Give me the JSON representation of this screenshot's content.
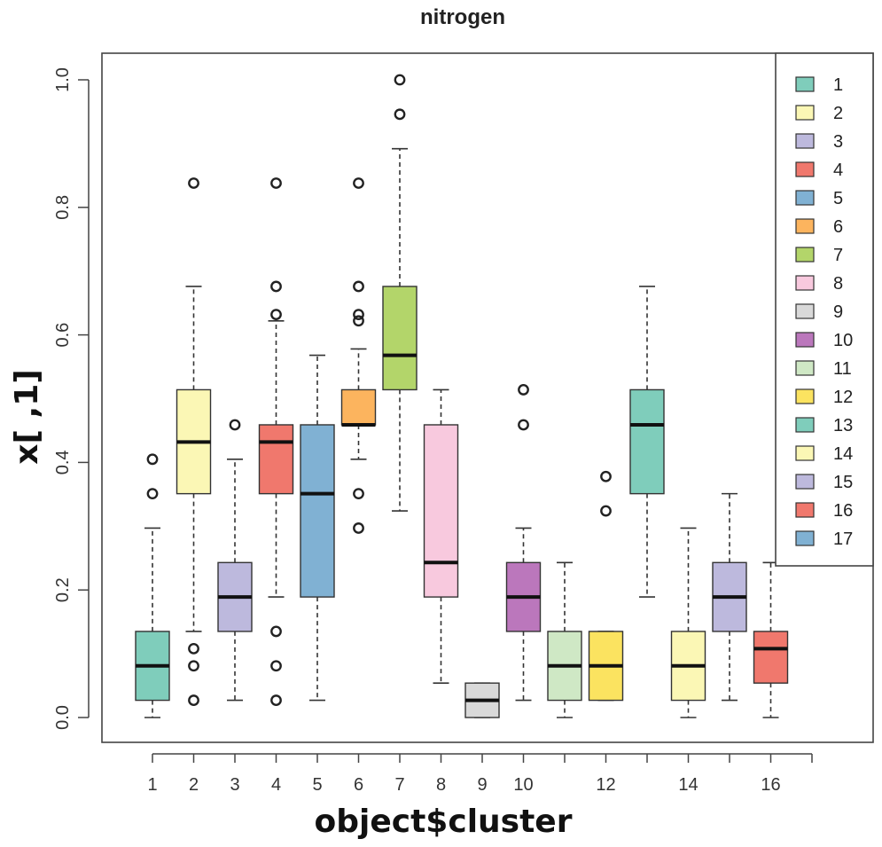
{
  "chart_data": {
    "type": "boxplot",
    "title": "nitrogen",
    "xlabel": "object$cluster",
    "ylabel": "x[ ,1]",
    "ylim": [
      0,
      1
    ],
    "y_ticks": [
      "0.0",
      "0.2",
      "0.4",
      "0.6",
      "0.8",
      "1.0"
    ],
    "categories": [
      "1",
      "2",
      "3",
      "4",
      "5",
      "6",
      "7",
      "8",
      "9",
      "10",
      "11",
      "12",
      "13",
      "14",
      "15",
      "16",
      "17"
    ],
    "x_tick_labels": [
      "1",
      "2",
      "3",
      "4",
      "5",
      "6",
      "7",
      "8",
      "9",
      "10",
      "",
      "12",
      "",
      "14",
      "",
      "16",
      ""
    ],
    "colors": [
      "#7fcdbb",
      "#fbf7b5",
      "#bdb9dd",
      "#f0786d",
      "#80b1d3",
      "#fcb45e",
      "#b3d56a",
      "#f8c9de",
      "#d9d9d9",
      "#bb77bc",
      "#cfe8c5",
      "#fbe360",
      "#7fcdbb",
      "#fbf7b5",
      "#bdb9dd",
      "#f0786d",
      "#80b1d3"
    ],
    "boxes": [
      {
        "cluster": "1",
        "low": 0.0,
        "q1": 0.027,
        "median": 0.081,
        "q3": 0.135,
        "high": 0.297,
        "outliers": [
          0.351,
          0.405
        ]
      },
      {
        "cluster": "2",
        "low": 0.135,
        "q1": 0.351,
        "median": 0.432,
        "q3": 0.514,
        "high": 0.676,
        "outliers": [
          0.838,
          0.108,
          0.081,
          0.027
        ]
      },
      {
        "cluster": "3",
        "low": 0.027,
        "q1": 0.135,
        "median": 0.189,
        "q3": 0.243,
        "high": 0.405,
        "outliers": [
          0.459
        ]
      },
      {
        "cluster": "4",
        "low": 0.189,
        "q1": 0.351,
        "median": 0.432,
        "q3": 0.459,
        "high": 0.622,
        "outliers": [
          0.838,
          0.676,
          0.632,
          0.135,
          0.081,
          0.027
        ]
      },
      {
        "cluster": "5",
        "low": 0.027,
        "q1": 0.189,
        "median": 0.351,
        "q3": 0.459,
        "high": 0.568,
        "outliers": []
      },
      {
        "cluster": "6",
        "low": 0.405,
        "q1": 0.459,
        "median": 0.459,
        "q3": 0.514,
        "high": 0.578,
        "outliers": [
          0.838,
          0.676,
          0.632,
          0.622,
          0.351,
          0.297
        ]
      },
      {
        "cluster": "7",
        "low": 0.324,
        "q1": 0.514,
        "median": 0.568,
        "q3": 0.676,
        "high": 0.892,
        "outliers": [
          1.0,
          0.946
        ]
      },
      {
        "cluster": "8",
        "low": 0.054,
        "q1": 0.189,
        "median": 0.243,
        "q3": 0.459,
        "high": 0.514,
        "outliers": []
      },
      {
        "cluster": "9",
        "low": 0.0,
        "q1": 0.0,
        "median": 0.027,
        "q3": 0.054,
        "high": 0.054,
        "outliers": []
      },
      {
        "cluster": "10",
        "low": 0.027,
        "q1": 0.135,
        "median": 0.189,
        "q3": 0.243,
        "high": 0.297,
        "outliers": [
          0.514,
          0.459
        ]
      },
      {
        "cluster": "11",
        "low": 0.0,
        "q1": 0.027,
        "median": 0.081,
        "q3": 0.135,
        "high": 0.243,
        "outliers": []
      },
      {
        "cluster": "12",
        "low": 0.027,
        "q1": 0.027,
        "median": 0.081,
        "q3": 0.135,
        "high": 0.135,
        "outliers": [
          0.378,
          0.324
        ]
      },
      {
        "cluster": "13",
        "low": 0.189,
        "q1": 0.351,
        "median": 0.459,
        "q3": 0.514,
        "high": 0.676,
        "outliers": []
      },
      {
        "cluster": "14",
        "low": 0.0,
        "q1": 0.027,
        "median": 0.081,
        "q3": 0.135,
        "high": 0.297,
        "outliers": []
      },
      {
        "cluster": "15",
        "low": 0.027,
        "q1": 0.135,
        "median": 0.189,
        "q3": 0.243,
        "high": 0.351,
        "outliers": []
      },
      {
        "cluster": "16",
        "low": 0.0,
        "q1": 0.054,
        "median": 0.108,
        "q3": 0.135,
        "high": 0.243,
        "outliers": []
      },
      {
        "cluster": "17",
        "low": null,
        "q1": null,
        "median": null,
        "q3": null,
        "high": null,
        "outliers": []
      }
    ],
    "legend": {
      "placement": "top-right",
      "entries": [
        "1",
        "2",
        "3",
        "4",
        "5",
        "6",
        "7",
        "8",
        "9",
        "10",
        "11",
        "12",
        "13",
        "14",
        "15",
        "16",
        "17"
      ]
    },
    "grid": false
  }
}
